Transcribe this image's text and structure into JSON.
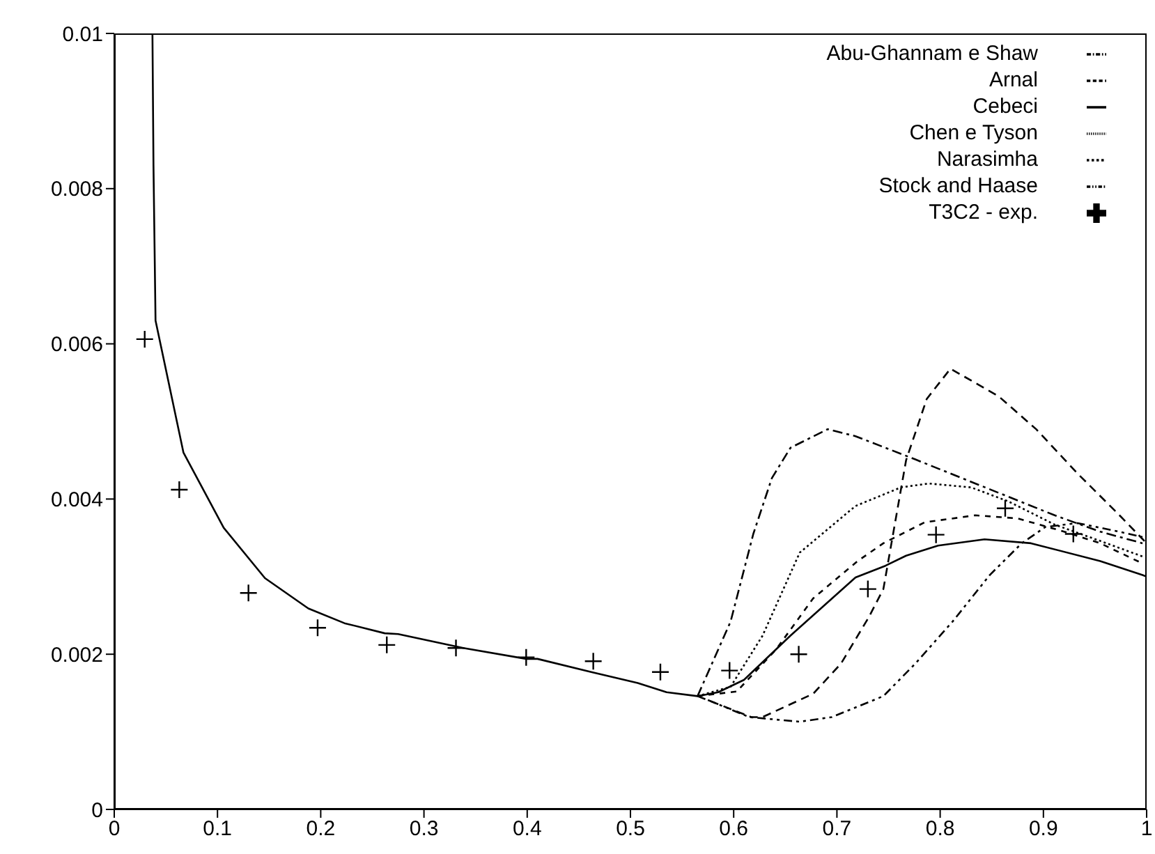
{
  "chart_data": {
    "type": "line",
    "xlim": [
      0,
      1
    ],
    "ylim": [
      0,
      0.01
    ],
    "xticks": [
      0,
      0.1,
      0.2,
      0.3,
      0.4,
      0.5,
      0.6,
      0.7,
      0.8,
      0.9,
      1
    ],
    "yticks": [
      0,
      0.002,
      0.004,
      0.006,
      0.008,
      0.01
    ],
    "grid": false,
    "legend": "top right",
    "series": [
      {
        "name": "T3C2 - exp.",
        "type": "scatter",
        "marker": "cross",
        "color": "#000000",
        "x": [
          0.0295,
          0.063,
          0.13,
          0.197,
          0.264,
          0.331,
          0.399,
          0.464,
          0.529,
          0.596,
          0.663,
          0.73,
          0.796,
          0.863,
          0.929
        ],
        "values": [
          0.00606,
          0.00412,
          0.00279,
          0.00234,
          0.00212,
          0.00208,
          0.00196,
          0.00191,
          0.00177,
          0.00179,
          0.002,
          0.00284,
          0.00354,
          0.00388,
          0.00355
        ]
      },
      {
        "name": "Cebeci",
        "line_style": "solid",
        "color": "#000000",
        "x": [
          0.037,
          0.038,
          0.04,
          0.067,
          0.106,
          0.146,
          0.188,
          0.223,
          0.262,
          0.275,
          0.338,
          0.399,
          0.41,
          0.462,
          0.507,
          0.535,
          0.565,
          0.585,
          0.61,
          0.655,
          0.718,
          0.747,
          0.767,
          0.798,
          0.843,
          0.888,
          0.955,
          0.996,
          1
        ],
        "values": [
          0.01,
          0.0083,
          0.0063,
          0.0046,
          0.00363,
          0.00298,
          0.00259,
          0.0024,
          0.00227,
          0.00226,
          0.00208,
          0.00194,
          0.00194,
          0.00177,
          0.00163,
          0.00151,
          0.00146,
          0.00151,
          0.00167,
          0.00224,
          0.00299,
          0.00314,
          0.00327,
          0.0034,
          0.00348,
          0.00343,
          0.0032,
          0.00302,
          0.003
        ]
      },
      {
        "name": "Arnal",
        "line_style": "dashed",
        "color": "#000000",
        "x": [
          0.565,
          0.617,
          0.628,
          0.677,
          0.704,
          0.731,
          0.745,
          0.767,
          0.787,
          0.81,
          0.857,
          0.893,
          0.933,
          0.973,
          1
        ],
        "values": [
          0.00146,
          0.00119,
          0.00119,
          0.00149,
          0.00188,
          0.00248,
          0.00284,
          0.0045,
          0.00529,
          0.00568,
          0.00532,
          0.0049,
          0.00433,
          0.0038,
          0.00343
        ]
      },
      {
        "name": "Narasimha",
        "line_style": "dashed",
        "color": "#000000",
        "x": [
          0.565,
          0.603,
          0.641,
          0.677,
          0.72,
          0.745,
          0.785,
          0.834,
          0.875,
          0.92,
          0.955,
          0.996
        ],
        "values": [
          0.00146,
          0.00152,
          0.00206,
          0.00272,
          0.0032,
          0.00343,
          0.0037,
          0.00379,
          0.00375,
          0.00358,
          0.00343,
          0.00317
        ]
      },
      {
        "name": "Chen e Tyson",
        "line_style": "dotted",
        "color": "#000000",
        "x": [
          0.565,
          0.597,
          0.628,
          0.664,
          0.718,
          0.762,
          0.789,
          0.83,
          0.866,
          0.911,
          0.955,
          0.996
        ],
        "values": [
          0.00146,
          0.00158,
          0.00224,
          0.00331,
          0.00391,
          0.00415,
          0.0042,
          0.00415,
          0.00397,
          0.00367,
          0.00346,
          0.00326
        ]
      },
      {
        "name": "Abu-Ghannam e Shaw",
        "line_style": "dashed",
        "color": "#000000",
        "x": [
          0.565,
          0.597,
          0.619,
          0.637,
          0.655,
          0.691,
          0.718,
          0.776,
          0.821,
          0.866,
          0.911,
          0.955,
          0.996
        ],
        "values": [
          0.00146,
          0.00242,
          0.00355,
          0.00427,
          0.00466,
          0.0049,
          0.00481,
          0.00451,
          0.00427,
          0.00403,
          0.00379,
          0.00358,
          0.00343
        ]
      },
      {
        "name": "Stock and Haase",
        "line_style": "dashed",
        "color": "#000000",
        "x": [
          0.575,
          0.615,
          0.664,
          0.695,
          0.745,
          0.776,
          0.812,
          0.848,
          0.879,
          0.902,
          0.933,
          0.973,
          0.996
        ],
        "values": [
          0.00141,
          0.00119,
          0.00113,
          0.00119,
          0.00146,
          0.00188,
          0.00242,
          0.00302,
          0.00343,
          0.00364,
          0.00369,
          0.00358,
          0.00351
        ]
      }
    ]
  }
}
